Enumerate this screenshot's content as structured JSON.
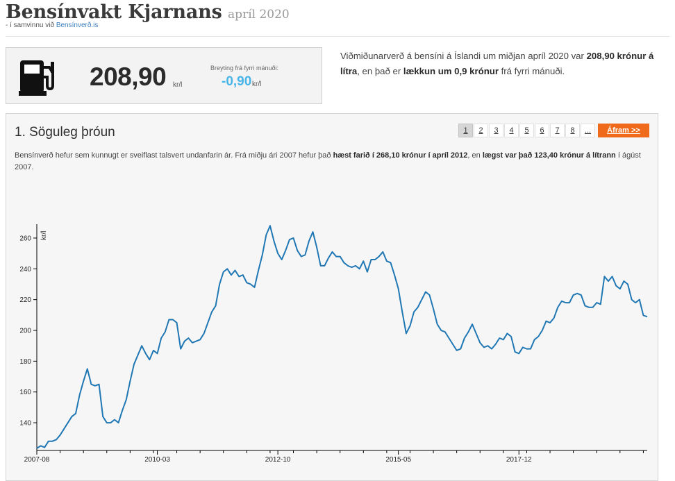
{
  "header": {
    "title": "Bensínvakt Kjarnans",
    "date": "apríl 2020",
    "subtitle_prefix": "- í samvinnu við",
    "subtitle_link": "Bensínverð.is"
  },
  "price_box": {
    "price": "208,90",
    "price_unit": "kr/l",
    "change_label": "Breyting frá fyrri mánuði:",
    "change_value": "-0,90",
    "change_unit": "kr/l"
  },
  "intro": {
    "t1": "Viðmiðunarverð á bensíni á Íslandi um miðjan apríl 2020 var ",
    "b1": "208,90 krónur á lítra",
    "t2": ", en það er ",
    "b2": "lækkun um 0,9 krónur",
    "t3": " frá fyrri mánuði."
  },
  "section": {
    "title": "1. Söguleg þróun",
    "pages": [
      "1",
      "2",
      "3",
      "4",
      "5",
      "6",
      "7",
      "8",
      "..."
    ],
    "active_page": "1",
    "next_label": "Áfram >>",
    "desc_t1": "Bensínverð hefur sem kunnugt er sveiflast talsvert undanfarin ár. Frá miðju ári 2007 hefur það ",
    "desc_b1": "hæst farið í 268,10 krónur í apríl 2012",
    "desc_t2": ", en ",
    "desc_b2": "lægst var það 123,40 krónur á lítrann",
    "desc_t3": " í ágúst 2007."
  },
  "colors": {
    "line": "#1f77b4",
    "accent_orange": "#ef6a1a",
    "change_blue": "#47b5e8"
  },
  "chart_data": {
    "type": "line",
    "ylabel": "kr/l",
    "xlabel": "",
    "ylim": [
      122,
      269
    ],
    "yticks": [
      140,
      160,
      180,
      200,
      220,
      240,
      260
    ],
    "xticks": [
      "2007-08",
      "2010-03",
      "2012-10",
      "2015-05",
      "2017-12"
    ],
    "start_month": "2007-08",
    "end_month": "2020-04",
    "series": [
      {
        "values": [
          123.4,
          125,
          124,
          128,
          128,
          129,
          132,
          136,
          140,
          144,
          146,
          158,
          167,
          175,
          165,
          164,
          165,
          144,
          140,
          140,
          142,
          140,
          148,
          155,
          167,
          178,
          184,
          190,
          185,
          181,
          187,
          185,
          195,
          199,
          207,
          207,
          205,
          188,
          193,
          195,
          192,
          193,
          194,
          198,
          205,
          212,
          216,
          230,
          238,
          240,
          236,
          239,
          235,
          236,
          231,
          230,
          228,
          239,
          249,
          262,
          268,
          258,
          250,
          246,
          252,
          259,
          260,
          252,
          248,
          249,
          258,
          264,
          254,
          242,
          242,
          247,
          251,
          248,
          248,
          244,
          242,
          241,
          242,
          240,
          245,
          238,
          246,
          246,
          248,
          251,
          245,
          244,
          236,
          227,
          212,
          198,
          203,
          212,
          215,
          220,
          225,
          223,
          214,
          204,
          200,
          199,
          195,
          191,
          187,
          188,
          195,
          199,
          204,
          198,
          192,
          189,
          190,
          188,
          191,
          195,
          194,
          198,
          196,
          186,
          185,
          189,
          188,
          188,
          194,
          196,
          200,
          206,
          205,
          208,
          215,
          219,
          218,
          218,
          223,
          224,
          223,
          216,
          215,
          215,
          218,
          217,
          235,
          232,
          235,
          229,
          227,
          232,
          230,
          220,
          218,
          220,
          209.8,
          208.9
        ]
      }
    ]
  }
}
